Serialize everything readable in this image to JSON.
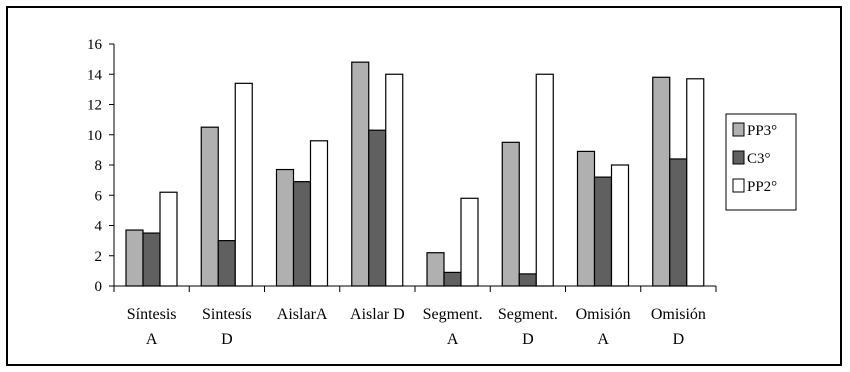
{
  "chart_data": {
    "type": "bar",
    "categories": [
      [
        "Síntesis",
        "A"
      ],
      [
        "Sintesís",
        "D"
      ],
      [
        "AislarA",
        ""
      ],
      [
        "Aislar D",
        ""
      ],
      [
        "Segment.",
        "A"
      ],
      [
        "Segment.",
        "D"
      ],
      [
        "Omisión",
        "A"
      ],
      [
        "Omisión",
        "D"
      ]
    ],
    "series": [
      {
        "name": "PP3°",
        "color": "#b0b0b0",
        "values": [
          3.7,
          10.5,
          7.7,
          14.8,
          2.2,
          9.5,
          8.9,
          13.8
        ]
      },
      {
        "name": "C3°",
        "color": "#606060",
        "values": [
          3.5,
          3.0,
          6.9,
          10.3,
          0.9,
          0.8,
          7.2,
          8.4
        ]
      },
      {
        "name": "PP2°",
        "color": "#ffffff",
        "values": [
          6.2,
          13.4,
          9.6,
          14.0,
          5.8,
          14.0,
          8.0,
          13.7
        ]
      }
    ],
    "yticks": [
      0,
      2,
      4,
      6,
      8,
      10,
      12,
      14,
      16
    ],
    "ylim": [
      0,
      16
    ],
    "grid": false,
    "legend_position": "right"
  }
}
